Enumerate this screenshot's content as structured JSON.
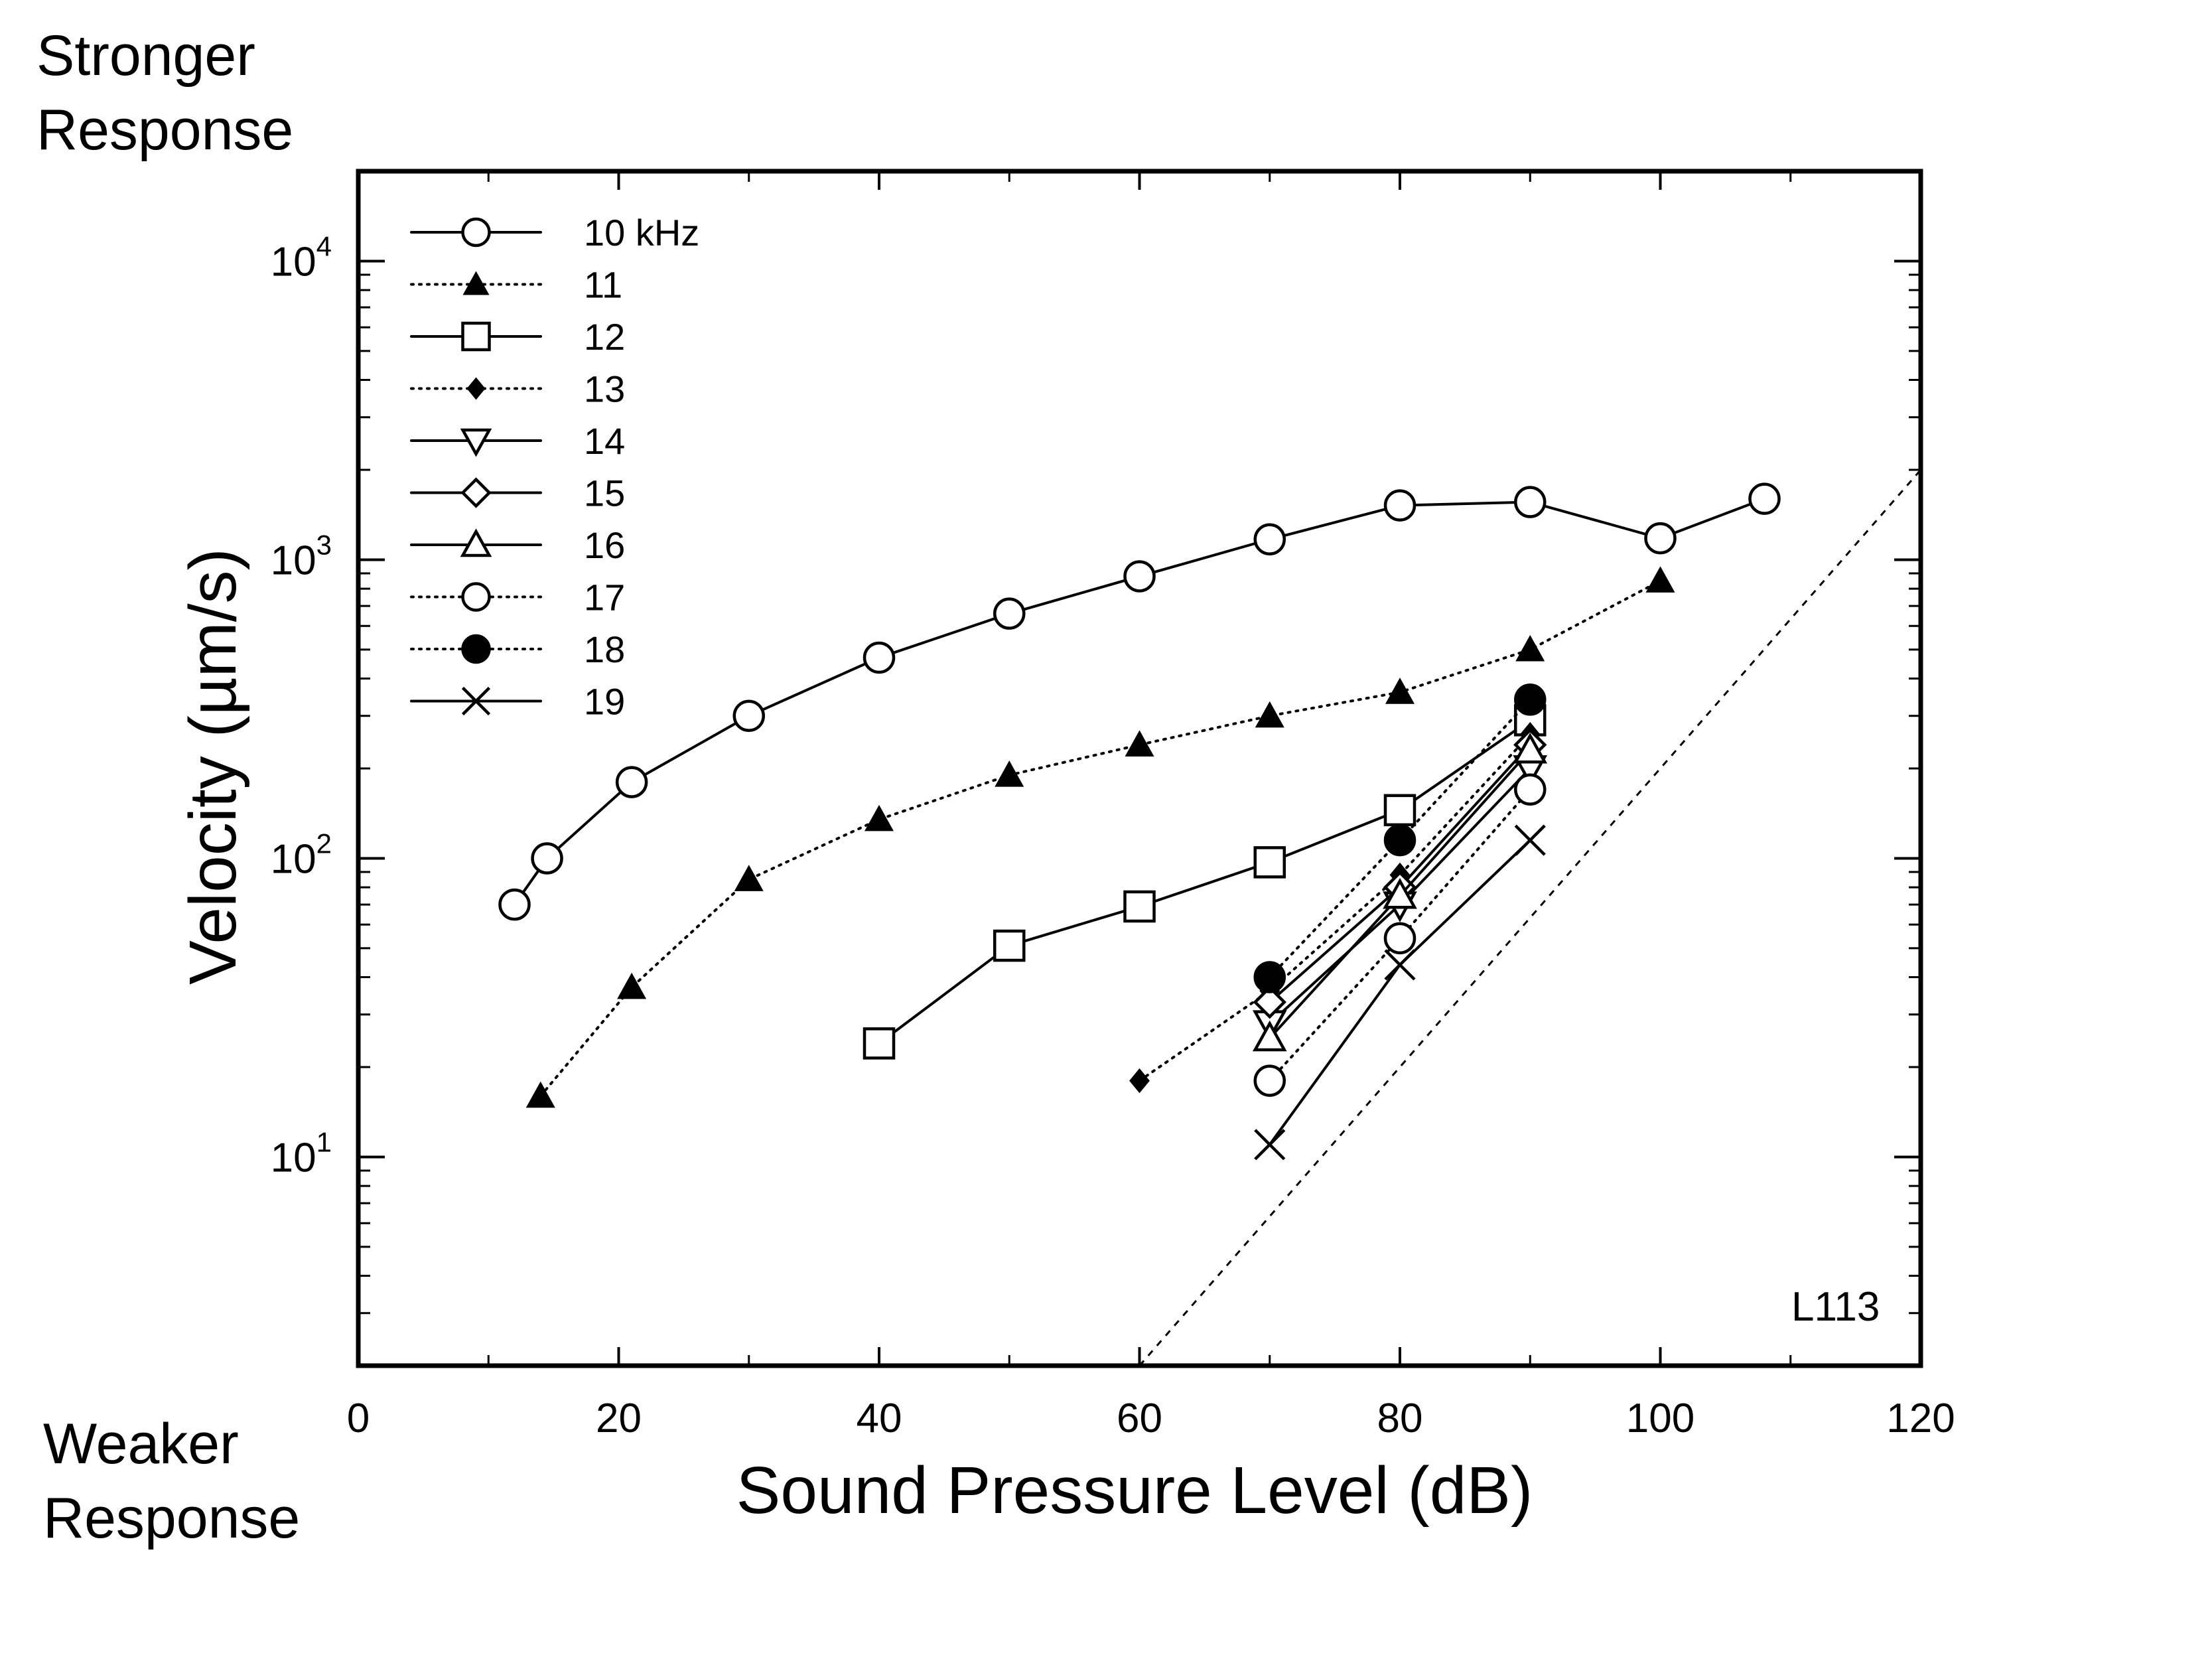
{
  "annotations": {
    "stronger": "Stronger\nResponse",
    "weaker": "Weaker\nResponse"
  },
  "chart_data": {
    "type": "line",
    "title": "",
    "xlabel": "Sound Pressure Level (dB)",
    "ylabel": "Velocity (µm/s)",
    "xlim": [
      0,
      120
    ],
    "ylim": [
      2,
      20000
    ],
    "y_scale": "log",
    "x_ticks": [
      "0",
      "20",
      "40",
      "60",
      "80",
      "100",
      "120"
    ],
    "y_ticks": [
      {
        "base": "10",
        "exp": "1",
        "value": 10
      },
      {
        "base": "10",
        "exp": "2",
        "value": 100
      },
      {
        "base": "10",
        "exp": "3",
        "value": 1000
      },
      {
        "base": "10",
        "exp": "4",
        "value": 10000
      }
    ],
    "grid": false,
    "legend_position": "top-left",
    "annotation": "L113",
    "reference_line": {
      "style": "dashed",
      "points": [
        [
          60,
          2
        ],
        [
          120,
          2000
        ]
      ]
    },
    "series": [
      {
        "name": "10 kHz",
        "marker": "circle-open",
        "line": "solid",
        "points": [
          [
            12,
            70
          ],
          [
            14.5,
            100
          ],
          [
            21,
            180
          ],
          [
            30,
            300
          ],
          [
            40,
            470
          ],
          [
            50,
            660
          ],
          [
            60,
            880
          ],
          [
            70,
            1170
          ],
          [
            80,
            1520
          ],
          [
            90,
            1560
          ],
          [
            100,
            1180
          ],
          [
            108,
            1600
          ]
        ]
      },
      {
        "name": "11",
        "marker": "triangle-up-filled",
        "line": "dotted",
        "points": [
          [
            14,
            16
          ],
          [
            21,
            37
          ],
          [
            30,
            85
          ],
          [
            40,
            135
          ],
          [
            50,
            190
          ],
          [
            60,
            240
          ],
          [
            70,
            300
          ],
          [
            80,
            360
          ],
          [
            90,
            500
          ],
          [
            100,
            850
          ]
        ]
      },
      {
        "name": "12",
        "marker": "square-open",
        "line": "solid",
        "points": [
          [
            40,
            24
          ],
          [
            50,
            51
          ],
          [
            60,
            69
          ],
          [
            70,
            97
          ],
          [
            80,
            145
          ],
          [
            90,
            290
          ]
        ]
      },
      {
        "name": "13",
        "marker": "diamond-filled",
        "line": "dotted",
        "points": [
          [
            60,
            18
          ],
          [
            70,
            36
          ],
          [
            80,
            88
          ],
          [
            90,
            260
          ]
        ]
      },
      {
        "name": "14",
        "marker": "triangle-down-open",
        "line": "solid",
        "points": [
          [
            70,
            28
          ],
          [
            80,
            70
          ],
          [
            90,
            200
          ]
        ]
      },
      {
        "name": "15",
        "marker": "diamond-open",
        "line": "solid",
        "points": [
          [
            70,
            33
          ],
          [
            80,
            80
          ],
          [
            90,
            240
          ]
        ]
      },
      {
        "name": "16",
        "marker": "triangle-up-open",
        "line": "solid",
        "points": [
          [
            70,
            25
          ],
          [
            80,
            75
          ],
          [
            90,
            230
          ]
        ]
      },
      {
        "name": "17",
        "marker": "circle-open",
        "line": "dotted",
        "points": [
          [
            70,
            18
          ],
          [
            80,
            54
          ],
          [
            90,
            170
          ]
        ]
      },
      {
        "name": "18",
        "marker": "circle-filled",
        "line": "dotted",
        "points": [
          [
            70,
            40
          ],
          [
            80,
            115
          ],
          [
            90,
            340
          ]
        ]
      },
      {
        "name": "19",
        "marker": "x",
        "line": "solid",
        "points": [
          [
            70,
            11
          ],
          [
            80,
            44
          ],
          [
            90,
            115
          ]
        ]
      }
    ]
  }
}
